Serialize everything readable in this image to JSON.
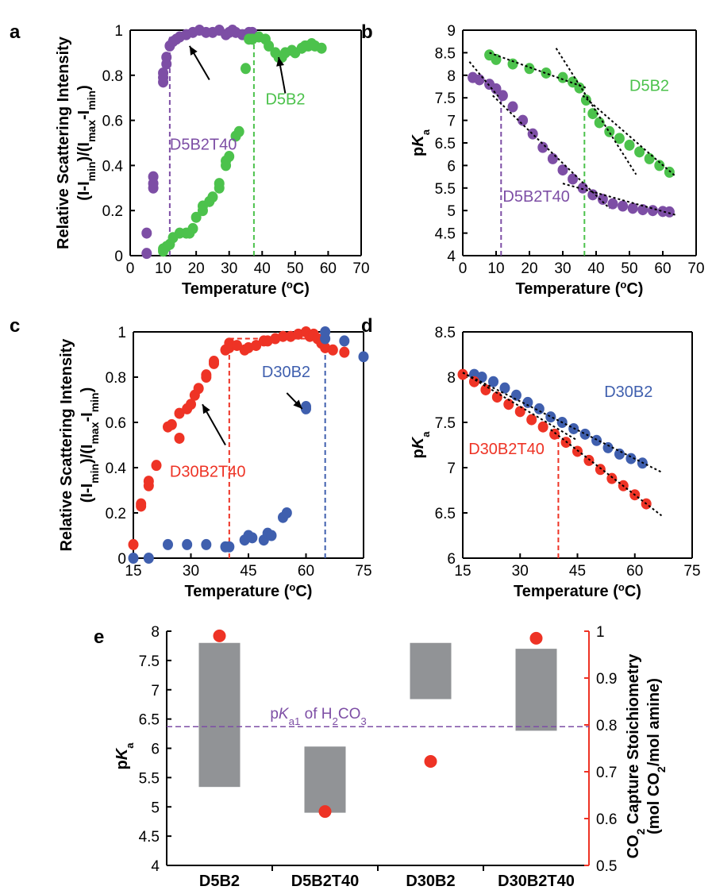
{
  "colors": {
    "purple": "#7d4ea5",
    "green": "#4cc24c",
    "red": "#ee3325",
    "blue": "#3f5fae",
    "gray": "#919396",
    "black": "#000000"
  },
  "chart_data": [
    {
      "panel": "a",
      "type": "scatter",
      "xlabel": "Temperature (°C)",
      "ylabel_lines": [
        "Relative Scattering Intensity",
        "(I-I_min)/(I_max-I_min)"
      ],
      "xlim": [
        0,
        70
      ],
      "ylim": [
        0,
        1
      ],
      "xticks": [
        0,
        10,
        20,
        30,
        40,
        50,
        60,
        70
      ],
      "yticks": [
        0,
        0.2,
        0.4,
        0.6,
        0.8,
        1
      ],
      "ytick_labels": [
        "0",
        "0.2",
        "0.4",
        "0.6",
        "0.8",
        "1"
      ],
      "series": [
        {
          "name": "D5B2T40",
          "color": "purple",
          "x": [
            5,
            5,
            7,
            7,
            7,
            10,
            10,
            10,
            11,
            11,
            12,
            13,
            14,
            15,
            17,
            19,
            21,
            23,
            25,
            27,
            29,
            30,
            31,
            32,
            34,
            36,
            37
          ],
          "y": [
            0.01,
            0.1,
            0.3,
            0.32,
            0.35,
            0.77,
            0.79,
            0.81,
            0.85,
            0.88,
            0.93,
            0.95,
            0.96,
            0.97,
            0.98,
            0.99,
            1.0,
            0.99,
            0.99,
            1.0,
            0.98,
            0.99,
            1.0,
            0.99,
            0.98,
            0.99,
            0.99
          ]
        },
        {
          "name": "D5B2",
          "color": "green",
          "x": [
            10,
            10,
            11,
            12,
            13,
            15,
            17,
            18,
            19,
            20,
            22,
            22,
            24,
            25,
            27,
            27,
            29,
            29,
            30,
            32,
            33,
            35,
            36,
            37,
            39,
            41,
            42,
            44,
            45,
            46,
            47,
            49,
            50,
            52,
            53,
            54,
            55,
            56,
            58
          ],
          "y": [
            0.02,
            0.03,
            0.04,
            0.05,
            0.08,
            0.1,
            0.1,
            0.1,
            0.12,
            0.17,
            0.2,
            0.22,
            0.24,
            0.26,
            0.3,
            0.32,
            0.4,
            0.42,
            0.44,
            0.53,
            0.55,
            0.83,
            0.96,
            0.96,
            0.97,
            0.96,
            0.93,
            0.9,
            0.88,
            0.88,
            0.9,
            0.91,
            0.9,
            0.92,
            0.93,
            0.93,
            0.94,
            0.93,
            0.92
          ]
        }
      ],
      "vlines": [
        {
          "x": 12,
          "color": "purple",
          "y_top": 0.97
        },
        {
          "x": 37.5,
          "color": "green",
          "y_top": 0.97
        }
      ],
      "annotations": [
        {
          "text": "D5B2T40",
          "color": "purple",
          "x": 12,
          "y": 0.47,
          "arrow_to": [
            18,
            0.93
          ],
          "arrow_from": [
            24,
            0.78
          ]
        },
        {
          "text": "D5B2",
          "color": "green",
          "x": 41,
          "y": 0.67,
          "arrow_to": [
            45,
            0.88
          ],
          "arrow_from": [
            47,
            0.72
          ]
        }
      ]
    },
    {
      "panel": "b",
      "type": "scatter",
      "xlabel": "Temperature (°C)",
      "ylabel": "pKa",
      "xlim": [
        0,
        70
      ],
      "ylim": [
        4,
        9
      ],
      "xticks": [
        0,
        10,
        20,
        30,
        40,
        50,
        60,
        70
      ],
      "yticks": [
        4,
        4.5,
        5,
        5.5,
        6,
        6.5,
        7,
        7.5,
        8,
        8.5,
        9
      ],
      "ytick_labels": [
        "4",
        "4.5",
        "5",
        "5.5",
        "6",
        "6.5",
        "7",
        "7.5",
        "8",
        "8.5",
        "9"
      ],
      "series": [
        {
          "name": "D5B2",
          "color": "green",
          "x": [
            8,
            10,
            15,
            20,
            25,
            30,
            33,
            35,
            37,
            39,
            41,
            44,
            47,
            50,
            53,
            56,
            59,
            62
          ],
          "y": [
            8.45,
            8.35,
            8.25,
            8.15,
            8.05,
            7.95,
            7.85,
            7.72,
            7.45,
            7.15,
            6.95,
            6.75,
            6.6,
            6.45,
            6.3,
            6.15,
            6.0,
            5.85
          ]
        },
        {
          "name": "D5B2T40",
          "color": "purple",
          "x": [
            3,
            5,
            8,
            10,
            12,
            15,
            18,
            21,
            24,
            27,
            30,
            33,
            36,
            39,
            42,
            45,
            48,
            51,
            54,
            57,
            60,
            62
          ],
          "y": [
            7.95,
            7.9,
            7.8,
            7.7,
            7.55,
            7.3,
            7.0,
            6.7,
            6.4,
            6.15,
            5.9,
            5.7,
            5.5,
            5.35,
            5.25,
            5.15,
            5.1,
            5.05,
            5.02,
            5.0,
            4.98,
            4.97
          ]
        }
      ],
      "fit_lines": [
        [
          [
            8,
            8.5
          ],
          [
            37,
            7.72
          ]
        ],
        [
          [
            28,
            8.6
          ],
          [
            52,
            5.8
          ]
        ],
        [
          [
            36,
            7.55
          ],
          [
            64,
            5.75
          ]
        ],
        [
          [
            2,
            8.3
          ],
          [
            11,
            7.5
          ]
        ],
        [
          [
            9,
            7.55
          ],
          [
            44,
            5.05
          ]
        ],
        [
          [
            30,
            5.6
          ],
          [
            64,
            4.9
          ]
        ]
      ],
      "vlines": [
        {
          "x": 11.5,
          "color": "purple",
          "y_top": 7.5
        },
        {
          "x": 36.5,
          "color": "green",
          "y_top": 7.6
        }
      ],
      "annotations": [
        {
          "text": "D5B2",
          "color": "green",
          "x": 50,
          "y": 7.65
        },
        {
          "text": "D5B2T40",
          "color": "purple",
          "x": 12,
          "y": 5.2
        }
      ]
    },
    {
      "panel": "c",
      "type": "scatter",
      "xlabel": "Temperature (°C)",
      "ylabel_lines": [
        "Relative Scattering Intensity",
        "(I-I_min)/(I_max-I_min)"
      ],
      "xlim": [
        15,
        75
      ],
      "ylim": [
        0,
        1
      ],
      "xticks": [
        15,
        30,
        45,
        60,
        75
      ],
      "yticks": [
        0,
        0.2,
        0.4,
        0.6,
        0.8,
        1
      ],
      "ytick_labels": [
        "0",
        "0.2",
        "0.4",
        "0.6",
        "0.8",
        "1"
      ],
      "series": [
        {
          "name": "D30B2T40",
          "color": "red",
          "x": [
            15,
            17,
            17,
            19,
            19,
            21,
            24,
            25,
            27,
            27,
            29,
            30,
            31,
            32,
            34,
            34,
            36,
            36,
            39,
            40,
            40,
            42,
            44,
            45,
            47,
            49,
            50,
            52,
            54,
            56,
            58,
            60,
            61,
            62,
            63,
            64,
            65,
            67,
            70
          ],
          "y": [
            0.06,
            0.23,
            0.24,
            0.32,
            0.34,
            0.41,
            0.58,
            0.59,
            0.53,
            0.64,
            0.66,
            0.68,
            0.72,
            0.75,
            0.8,
            0.81,
            0.86,
            0.87,
            0.92,
            0.93,
            0.95,
            0.94,
            0.92,
            0.93,
            0.94,
            0.96,
            0.96,
            0.97,
            0.98,
            0.98,
            0.99,
            1.0,
            0.98,
            0.99,
            0.97,
            0.95,
            0.93,
            0.92,
            0.91
          ]
        },
        {
          "name": "D30B2",
          "color": "blue",
          "x": [
            15,
            19,
            24,
            29,
            34,
            39,
            40,
            44,
            45,
            46,
            49,
            50,
            51,
            54,
            55,
            60,
            60,
            65,
            65,
            70,
            75
          ],
          "y": [
            0.0,
            0.0,
            0.06,
            0.06,
            0.06,
            0.05,
            0.05,
            0.08,
            0.1,
            0.09,
            0.08,
            0.11,
            0.1,
            0.18,
            0.2,
            0.66,
            0.67,
            0.97,
            1.0,
            0.96,
            0.89
          ]
        }
      ],
      "dashed_lines": [
        {
          "x1": 40,
          "y1": 0.97,
          "x2": 65,
          "y2": 0.97,
          "color": "red"
        }
      ],
      "vlines": [
        {
          "x": 40,
          "color": "red",
          "y_top": 0.97
        },
        {
          "x": 65,
          "color": "blue",
          "y_top": 1.0
        }
      ],
      "annotations": [
        {
          "text": "D30B2T40",
          "color": "red",
          "x": 24.5,
          "y": 0.36,
          "arrow_to": [
            33,
            0.68
          ],
          "arrow_from": [
            39,
            0.5
          ]
        },
        {
          "text": "D30B2",
          "color": "blue",
          "x": 48.5,
          "y": 0.8,
          "arrow_to": [
            59,
            0.66
          ],
          "arrow_from": [
            55,
            0.73
          ]
        }
      ]
    },
    {
      "panel": "d",
      "type": "scatter",
      "xlabel": "Temperature (°C)",
      "ylabel": "pKa",
      "xlim": [
        15,
        75
      ],
      "ylim": [
        6,
        8.5
      ],
      "xticks": [
        15,
        30,
        45,
        60,
        75
      ],
      "yticks": [
        6,
        6.5,
        7,
        7.5,
        8,
        8.5
      ],
      "ytick_labels": [
        "6",
        "6.5",
        "7",
        "7.5",
        "8",
        "8.5"
      ],
      "series": [
        {
          "name": "D30B2",
          "color": "blue",
          "x": [
            18,
            20,
            23,
            26,
            29,
            32,
            35,
            38,
            41,
            44,
            47,
            50,
            53,
            56,
            59,
            62
          ],
          "y": [
            8.03,
            8.0,
            7.95,
            7.88,
            7.8,
            7.72,
            7.65,
            7.56,
            7.5,
            7.43,
            7.37,
            7.3,
            7.22,
            7.15,
            7.1,
            7.05
          ]
        },
        {
          "name": "D30B2T40",
          "color": "red",
          "x": [
            15,
            18,
            21,
            24,
            27,
            30,
            33,
            36,
            39,
            42,
            45,
            48,
            51,
            54,
            57,
            60,
            63
          ],
          "y": [
            8.03,
            7.95,
            7.86,
            7.78,
            7.7,
            7.62,
            7.53,
            7.45,
            7.37,
            7.28,
            7.18,
            7.08,
            6.98,
            6.88,
            6.8,
            6.7,
            6.6
          ]
        }
      ],
      "fit_lines": [
        [
          [
            15,
            8.05
          ],
          [
            67,
            6.95
          ]
        ],
        [
          [
            15,
            8.05
          ],
          [
            45,
            7.3
          ]
        ],
        [
          [
            38,
            7.42
          ],
          [
            67,
            6.47
          ]
        ]
      ],
      "vlines": [
        {
          "x": 40,
          "color": "red",
          "y_top": 7.38
        }
      ],
      "annotations": [
        {
          "text": "D30B2",
          "color": "blue",
          "x": 52,
          "y": 7.78
        },
        {
          "text": "D30B2T40",
          "color": "red",
          "x": 16.5,
          "y": 7.15
        }
      ]
    },
    {
      "panel": "e",
      "type": "bar",
      "categories": [
        "D5B2",
        "D5B2T40",
        "D30B2",
        "D30B2T40"
      ],
      "ylabel": "pKa",
      "ylabel_right_lines": [
        "CO2 Capture Stoichiometry",
        "(mol CO2/mol amine)"
      ],
      "ylim": [
        4,
        8
      ],
      "ylim_right": [
        0.5,
        1
      ],
      "yticks": [
        4,
        4.5,
        5,
        5.5,
        6,
        6.5,
        7,
        7.5,
        8
      ],
      "ytick_labels": [
        "4",
        "4.5",
        "5",
        "5.5",
        "6",
        "6.5",
        "7",
        "7.5",
        "8"
      ],
      "yticks_right": [
        0.5,
        0.6,
        0.7,
        0.8,
        0.9,
        1
      ],
      "ytick_labels_right": [
        "0.5",
        "0.6",
        "0.7",
        "0.8",
        "0.9",
        "1"
      ],
      "pka_ranges": [
        [
          5.34,
          7.8
        ],
        [
          4.9,
          6.03
        ],
        [
          6.84,
          7.8
        ],
        [
          6.3,
          7.7
        ]
      ],
      "stoichiometry": [
        0.99,
        0.615,
        0.722,
        0.985
      ],
      "hline": {
        "pka": 6.37,
        "label": "pKa1 of H2CO3",
        "color": "purple"
      }
    }
  ]
}
